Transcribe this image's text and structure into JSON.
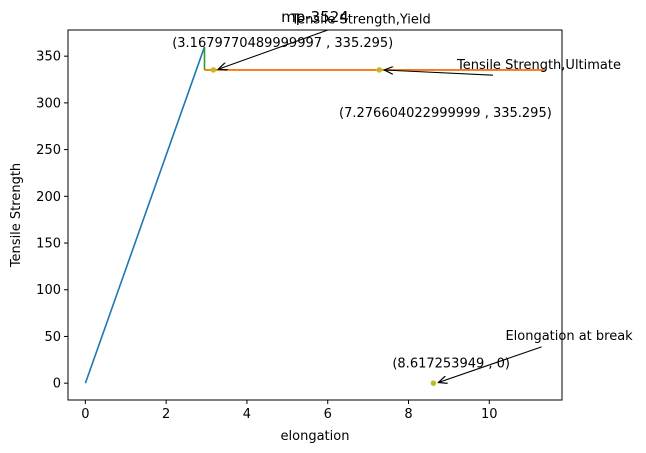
{
  "chart_data": {
    "type": "line",
    "title": "mp-3524",
    "xlabel": "elongation",
    "ylabel": "Tensile Strength",
    "xlim": [
      -0.43,
      11.8
    ],
    "ylim": [
      -18,
      378
    ],
    "x_ticks": [
      0,
      2,
      4,
      6,
      8,
      10
    ],
    "y_ticks": [
      0,
      50,
      100,
      150,
      200,
      250,
      300,
      350
    ],
    "x_tick_labels": [
      "0",
      "2",
      "4",
      "6",
      "8",
      "10"
    ],
    "y_tick_labels": [
      "0",
      "50",
      "100",
      "150",
      "200",
      "250",
      "300",
      "350"
    ],
    "grid": false,
    "legend": "none",
    "series": [
      {
        "color": "#1f77b4",
        "x": [
          0,
          2.95
        ],
        "y": [
          0,
          360
        ]
      },
      {
        "color": "#2ca02c",
        "x": [
          2.95,
          2.95
        ],
        "y": [
          360,
          335.295
        ]
      },
      {
        "color": "#d62728",
        "x": [
          2.95,
          11.4
        ],
        "y": [
          335.295,
          335.295
        ]
      },
      {
        "color": "#ff7f0e",
        "x": [
          2.95,
          11.4
        ],
        "y": [
          335.295,
          335.295
        ]
      }
    ],
    "points": [
      {
        "x": 3.1679770489999997,
        "y": 335.295,
        "color": "#bcbd22"
      },
      {
        "x": 7.276604022999999,
        "y": 335.295,
        "color": "#bcbd22"
      },
      {
        "x": 8.617253949,
        "y": 0,
        "color": "#bcbd22"
      }
    ],
    "annotations": [
      {
        "text": "Tensile Strength,Yield",
        "target": [
          3.1679770489999997,
          335.295
        ],
        "text_pos": [
          5.1,
          385
        ]
      },
      {
        "text": "(3.1679770489999997 , 335.295)",
        "target": null,
        "text_pos": [
          2.15,
          360
        ]
      },
      {
        "text": "Tensile Strength,Ultimate",
        "target": [
          7.276604022999999,
          335.295
        ],
        "text_pos": [
          9.2,
          336
        ]
      },
      {
        "text": "(7.276604022999999 , 335.295)",
        "target": null,
        "text_pos": [
          6.28,
          285
        ]
      },
      {
        "text": "Elongation at break",
        "target": [
          8.617253949,
          0
        ],
        "text_pos": [
          10.4,
          46
        ]
      },
      {
        "text": "(8.617253949 , 0)",
        "target": null,
        "text_pos": [
          7.6,
          17
        ]
      }
    ]
  }
}
